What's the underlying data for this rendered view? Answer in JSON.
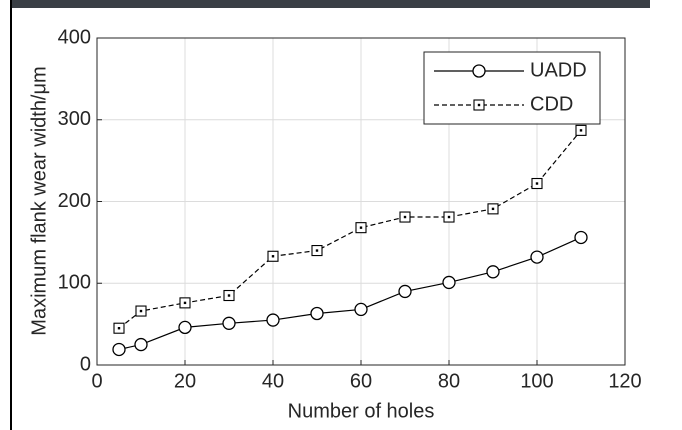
{
  "chart_data": {
    "type": "line",
    "xlabel": "Number of holes",
    "ylabel": "Maximum flank wear width/μm",
    "xlim": [
      0,
      120
    ],
    "xticks": [
      0,
      20,
      40,
      60,
      80,
      100,
      120
    ],
    "ylim": [
      0,
      400
    ],
    "yticks": [
      0,
      100,
      200,
      300,
      400
    ],
    "grid": true,
    "legend": "upper right",
    "series": [
      {
        "name": "UADD",
        "color": "#000000",
        "dash": "solid",
        "marker": "circle",
        "x": [
          5,
          10,
          20,
          30,
          40,
          50,
          60,
          70,
          80,
          90,
          100,
          110
        ],
        "values": [
          19,
          25,
          46,
          51,
          55,
          63,
          68,
          90,
          101,
          114,
          132,
          156
        ]
      },
      {
        "name": "CDD",
        "color": "#000000",
        "dash": "dashed",
        "marker": "square",
        "x": [
          5,
          10,
          20,
          30,
          40,
          50,
          60,
          70,
          80,
          90,
          100,
          110
        ],
        "values": [
          45,
          66,
          76,
          85,
          133,
          140,
          168,
          181,
          181,
          191,
          222,
          287
        ]
      }
    ]
  }
}
